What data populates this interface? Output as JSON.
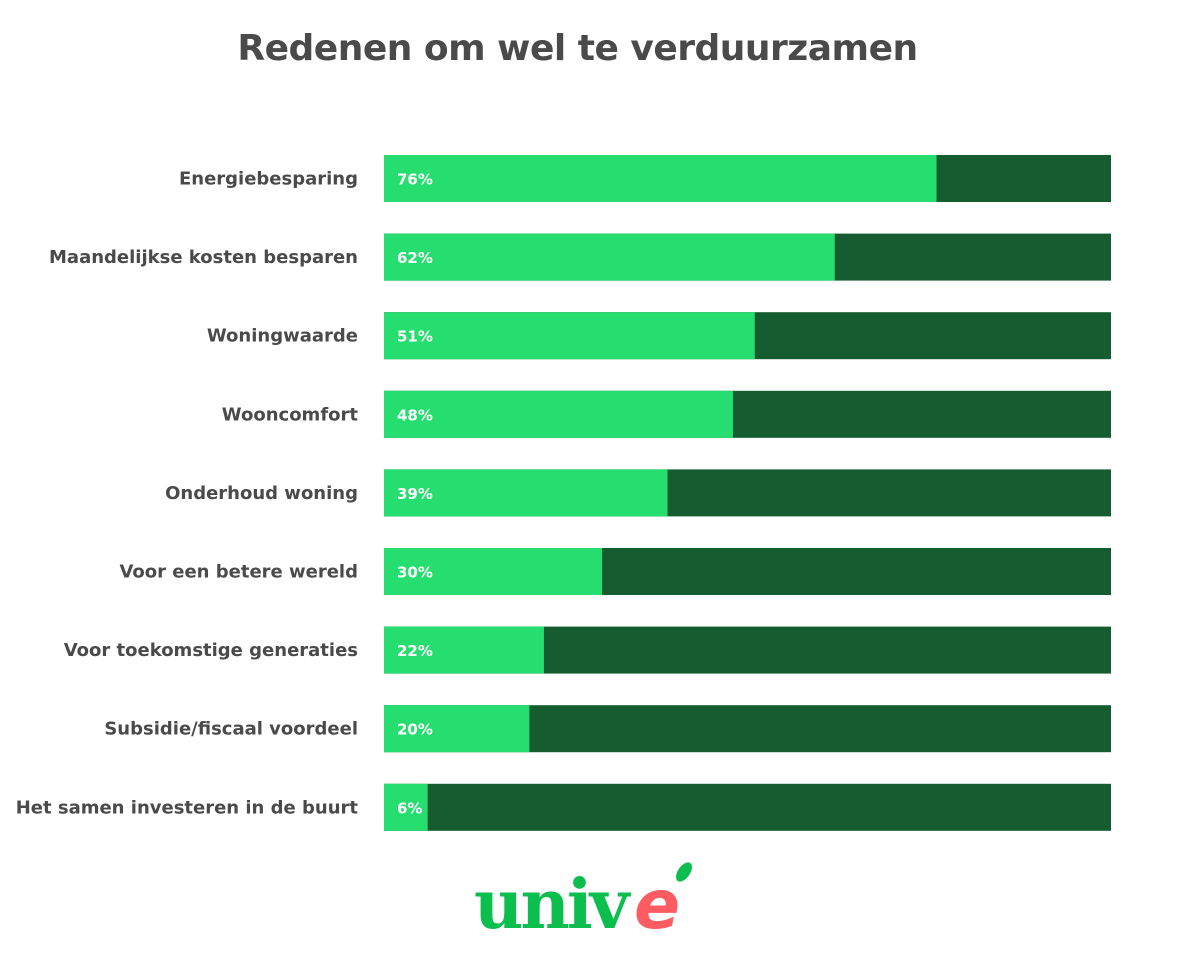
{
  "chart_data": {
    "type": "bar",
    "orientation": "horizontal",
    "stacked_to_100": true,
    "title": "Redenen om wel te verduurzamen",
    "categories": [
      "Energiebesparing",
      "Maandelijkse kosten besparen",
      "Woningwaarde",
      "Wooncomfort",
      "Onderhoud woning",
      "Voor een betere wereld",
      "Voor toekomstige generaties",
      "Subsidie/fiscaal voordeel",
      "Het samen investeren in de buurt"
    ],
    "values": [
      76,
      62,
      51,
      48,
      39,
      30,
      22,
      20,
      6
    ],
    "data_labels": [
      "76%",
      "62%",
      "51%",
      "48%",
      "39%",
      "30%",
      "22%",
      "20%",
      "6%"
    ],
    "xlim": [
      0,
      100
    ],
    "grid": false,
    "legend": "none",
    "colors": {
      "value": "#26DD70",
      "remainder": "#155C30",
      "text": "#4a4a4a"
    }
  },
  "logo": {
    "text": "univé",
    "colors": {
      "main": "#0BBE4E",
      "accent": "#FF5C62"
    }
  }
}
